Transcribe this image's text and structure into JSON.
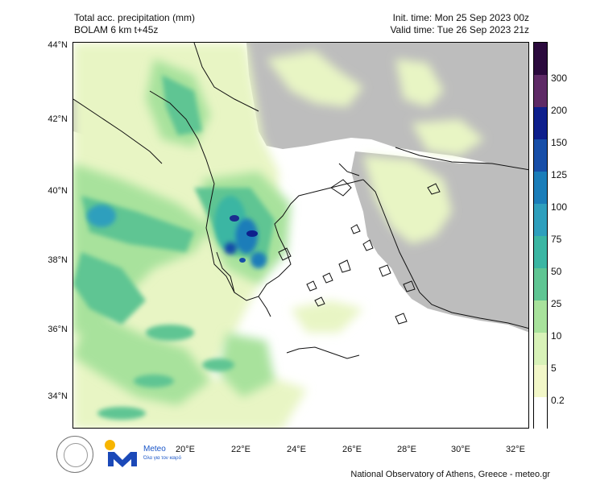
{
  "header": {
    "title_line1": "Total acc. precipitation (mm)",
    "title_line2": "BOLAM 6 km t+45z",
    "init_time": "Init. time: Mon 25 Sep 2023 00z",
    "valid_time": "Valid time: Tue 26 Sep 2023 21z"
  },
  "axes": {
    "lat_labels": [
      "44°N",
      "42°N",
      "40°N",
      "38°N",
      "36°N",
      "34°N"
    ],
    "lon_labels": [
      "20°E",
      "22°E",
      "24°E",
      "26°E",
      "28°E",
      "30°E",
      "32°E"
    ]
  },
  "colorbar": {
    "labels": [
      "300",
      "200",
      "150",
      "125",
      "100",
      "75",
      "50",
      "25",
      "10",
      "5",
      "0.2"
    ],
    "colors": [
      "#2b0a3d",
      "#5e2a66",
      "#0e1f8c",
      "#174ea8",
      "#1a7db9",
      "#2e9fbd",
      "#3bb6a3",
      "#5fc593",
      "#a8e29c",
      "#d8f2b8",
      "#f2f7c8",
      "#ffffff"
    ]
  },
  "colors": {
    "land_gray": "#bdbdbd",
    "sea_white": "#ffffff",
    "precip_light": "#e8f5c4",
    "precip_mid": "#8fd6a3",
    "precip_heavy": "#1f8fb5",
    "precip_max": "#1b2d8f"
  },
  "logos": {
    "brand_name": "Meteo",
    "brand_tagline": "Όλα για τον καιρό"
  },
  "footer": {
    "credit": "National Observatory of Athens, Greece - meteo.gr"
  }
}
